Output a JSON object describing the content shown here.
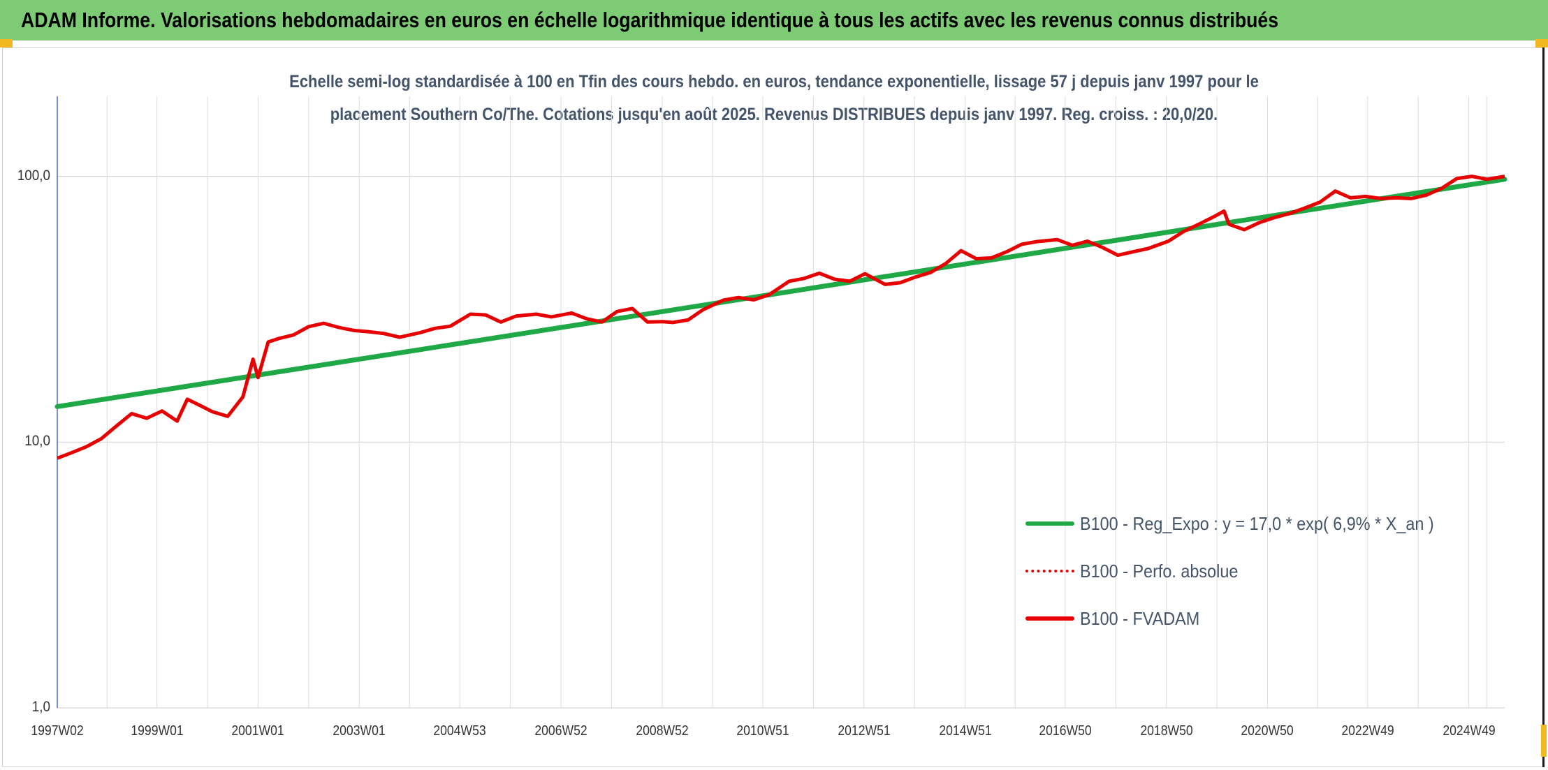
{
  "banner": {
    "title": "ADAM Informe. Valorisations hebdomadaires en euros en échelle logarithmique identique à tous les actifs avec les revenus connus distribués"
  },
  "colors": {
    "banner_bg": "#7ecb76",
    "trend_line": "#1fa846",
    "perf_line": "#e60000",
    "fvadam_line": "#e60000",
    "subtitle_text": "#44546a",
    "corner_marks": "#f2b822"
  },
  "chart_data": {
    "type": "line",
    "title_lines": [
      "Echelle semi-log standardisée à 100 en Tfin des cours hebdo. en euros, tendance exponentielle, lissage 57 j depuis janv 1997 pour le",
      "placement Southern Co/The. Cotations jusqu'en août 2025. Revenus DISTRIBUES depuis janv 1997. Reg. croiss. : 20,0/20."
    ],
    "y_scale": "log",
    "ylim": [
      1,
      200
    ],
    "y_ticks": [
      {
        "value": 1,
        "label": "1,0"
      },
      {
        "value": 10,
        "label": "10,0"
      },
      {
        "value": 100,
        "label": "100,0"
      }
    ],
    "xlim": [
      1997.03,
      2025.65
    ],
    "x_ticks": [
      {
        "value": 1997.03,
        "label": "1997W02"
      },
      {
        "value": 1999.0,
        "label": "1999W01"
      },
      {
        "value": 2001.0,
        "label": "2001W01"
      },
      {
        "value": 2003.0,
        "label": "2003W01"
      },
      {
        "value": 2004.99,
        "label": "2004W53"
      },
      {
        "value": 2006.99,
        "label": "2006W52"
      },
      {
        "value": 2008.99,
        "label": "2008W52"
      },
      {
        "value": 2010.98,
        "label": "2010W51"
      },
      {
        "value": 2012.98,
        "label": "2012W51"
      },
      {
        "value": 2014.98,
        "label": "2014W51"
      },
      {
        "value": 2016.96,
        "label": "2016W50"
      },
      {
        "value": 2018.96,
        "label": "2018W50"
      },
      {
        "value": 2020.96,
        "label": "2020W50"
      },
      {
        "value": 2022.94,
        "label": "2022W49"
      },
      {
        "value": 2024.94,
        "label": "2024W49"
      }
    ],
    "grid": {
      "vertical": true,
      "horizontal": true
    },
    "legend_position": "lower-right",
    "series": [
      {
        "name": "B100 - Reg_Expo : y = 17,0 * exp( 6,9% *  X_an )",
        "style": "solid",
        "color": "#1fa846",
        "x": [
          1997.03,
          2025.65
        ],
        "y": [
          13.6,
          97.5
        ]
      },
      {
        "name": "B100 - Perfo. absolue",
        "style": "dotted",
        "color": "#e60000",
        "x": [],
        "y": []
      },
      {
        "name": "B100 - FVADAM",
        "style": "solid",
        "color": "#e60000",
        "x": [
          1997.03,
          1997.3,
          1997.6,
          1997.9,
          1998.2,
          1998.5,
          1998.8,
          1999.1,
          1999.4,
          1999.6,
          1999.9,
          2000.1,
          2000.4,
          2000.7,
          2000.9,
          2001.0,
          2001.2,
          2001.4,
          2001.7,
          2002.0,
          2002.3,
          2002.6,
          2002.9,
          2003.2,
          2003.5,
          2003.8,
          2004.2,
          2004.5,
          2004.8,
          2005.2,
          2005.5,
          2005.8,
          2006.1,
          2006.5,
          2006.8,
          2007.2,
          2007.5,
          2007.8,
          2008.1,
          2008.4,
          2008.7,
          2009.0,
          2009.2,
          2009.5,
          2009.8,
          2010.2,
          2010.5,
          2010.8,
          2011.1,
          2011.5,
          2011.8,
          2012.1,
          2012.4,
          2012.7,
          2013.0,
          2013.4,
          2013.7,
          2014.0,
          2014.3,
          2014.6,
          2014.9,
          2015.2,
          2015.5,
          2015.8,
          2016.1,
          2016.4,
          2016.8,
          2017.1,
          2017.4,
          2017.7,
          2018.0,
          2018.3,
          2018.6,
          2019.0,
          2019.3,
          2019.6,
          2019.9,
          2020.1,
          2020.2,
          2020.5,
          2020.8,
          2021.1,
          2021.4,
          2021.7,
          2022.0,
          2022.3,
          2022.6,
          2022.9,
          2023.2,
          2023.5,
          2023.8,
          2024.1,
          2024.4,
          2024.7,
          2025.0,
          2025.3,
          2025.65
        ],
        "y": [
          8.7,
          9.1,
          9.6,
          10.3,
          11.5,
          12.8,
          12.3,
          13.1,
          12.0,
          14.5,
          13.6,
          13.0,
          12.5,
          14.8,
          20.5,
          17.5,
          23.8,
          24.5,
          25.3,
          27.2,
          28.0,
          27.0,
          26.3,
          26.0,
          25.6,
          24.8,
          25.8,
          26.8,
          27.3,
          30.3,
          30.1,
          28.3,
          29.8,
          30.3,
          29.6,
          30.6,
          29.1,
          28.3,
          31.0,
          31.8,
          28.3,
          28.4,
          28.2,
          28.8,
          31.5,
          34.2,
          35.0,
          34.3,
          35.8,
          40.3,
          41.3,
          43.2,
          41.0,
          40.3,
          43.0,
          39.2,
          39.8,
          41.8,
          43.5,
          47.0,
          52.5,
          49.0,
          49.3,
          52.0,
          55.5,
          56.8,
          57.8,
          55.0,
          57.0,
          54.0,
          50.5,
          52.0,
          53.5,
          57.0,
          62.0,
          66.0,
          70.5,
          74.0,
          66.0,
          63.0,
          67.0,
          70.0,
          72.5,
          76.0,
          80.0,
          88.0,
          83.0,
          84.0,
          82.5,
          83.0,
          82.5,
          85.0,
          90.0,
          98.0,
          100.0,
          97.5,
          100.0
        ]
      }
    ]
  }
}
